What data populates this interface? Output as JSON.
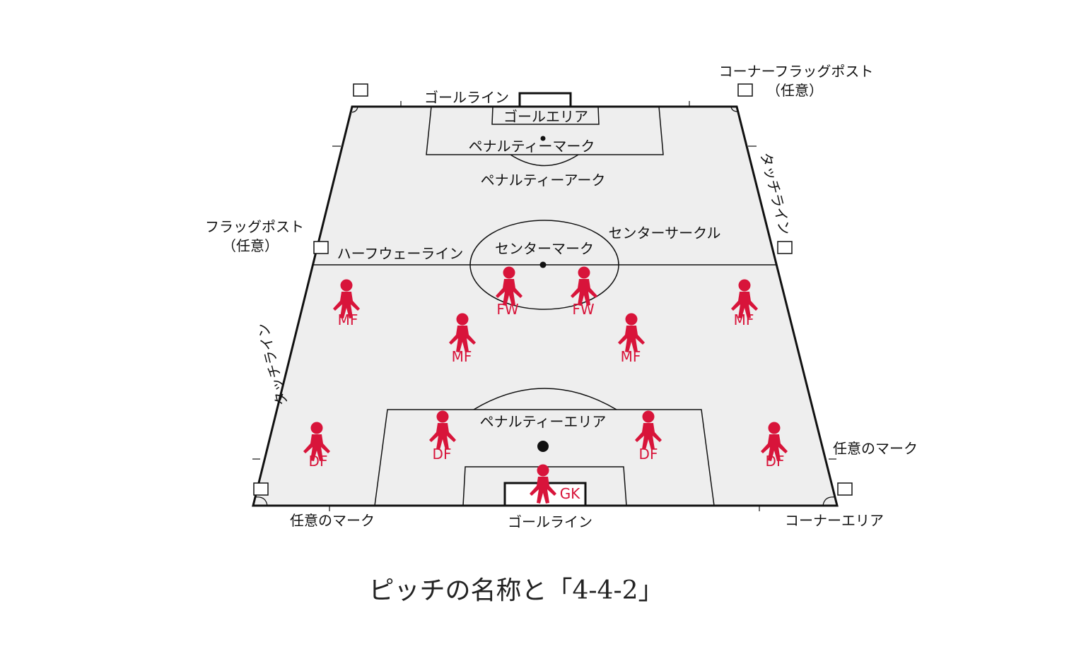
{
  "colors": {
    "pitch_fill": "#eeeeee",
    "line": "#111111",
    "player": "#d8143a",
    "background": "#ffffff"
  },
  "labels": {
    "goal_line_top": "ゴールライン",
    "goal_area": "ゴールエリア",
    "penalty_mark": "ペナルティーマーク",
    "penalty_arc": "ペナルティーアーク",
    "corner_flagpost": "コーナーフラッグポスト",
    "corner_flagpost_optional": "（任意）",
    "touch_line_right": "タッチライン",
    "flagpost": "フラッグポスト",
    "flagpost_optional": "（任意）",
    "halfway_line": "ハーフウェーライン",
    "center_mark": "センターマーク",
    "center_circle": "センターサークル",
    "touch_line_left": "タッチライン",
    "penalty_area": "ペナルティーエリア",
    "optional_mark_right": "任意のマーク",
    "optional_mark_left": "任意のマーク",
    "goal_line_bottom": "ゴールライン",
    "corner_area": "コーナーエリア"
  },
  "players": [
    {
      "role": "FW"
    },
    {
      "role": "FW"
    },
    {
      "role": "MF"
    },
    {
      "role": "MF"
    },
    {
      "role": "MF"
    },
    {
      "role": "MF"
    },
    {
      "role": "DF"
    },
    {
      "role": "DF"
    },
    {
      "role": "DF"
    },
    {
      "role": "DF"
    },
    {
      "role": "GK"
    }
  ],
  "caption": "ピッチの名称と「4-4-2」"
}
